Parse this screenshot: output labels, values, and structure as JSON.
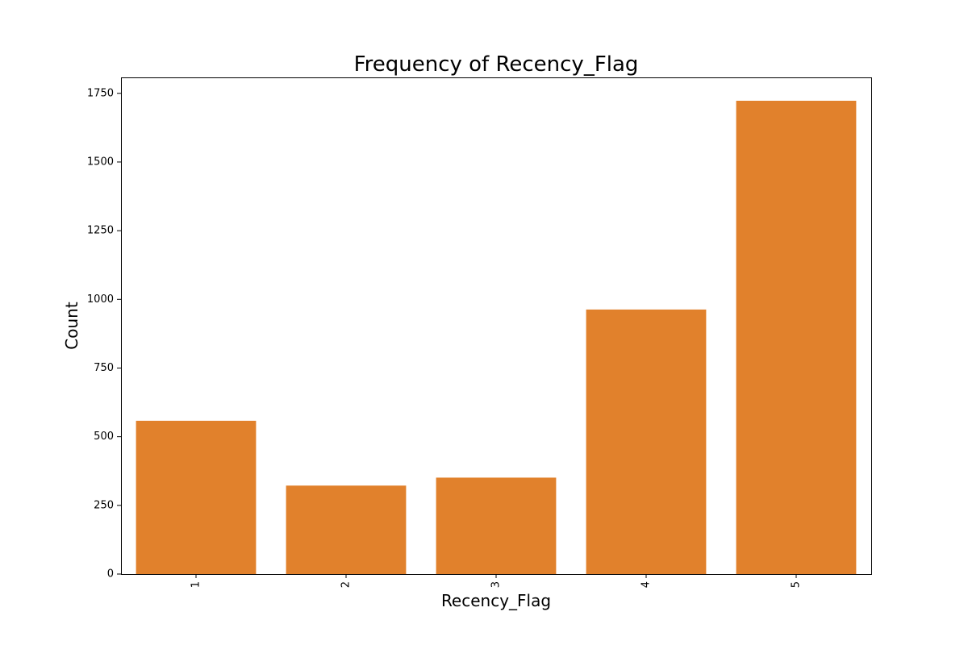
{
  "chart_data": {
    "type": "bar",
    "title": "Frequency of Recency_Flag",
    "xlabel": "Recency_Flag",
    "ylabel": "Count",
    "categories": [
      "1",
      "2",
      "3",
      "4",
      "5"
    ],
    "values": [
      558,
      322,
      351,
      963,
      1723
    ],
    "ylim": [
      0,
      1808
    ],
    "yticks": [
      0,
      250,
      500,
      750,
      1000,
      1250,
      1500,
      1750
    ],
    "ytick_labels": [
      "0",
      "250",
      "500",
      "750",
      "1000",
      "1250",
      "1500",
      "1750"
    ],
    "bar_color": "#e1812c",
    "grid": false,
    "legend": "none"
  }
}
